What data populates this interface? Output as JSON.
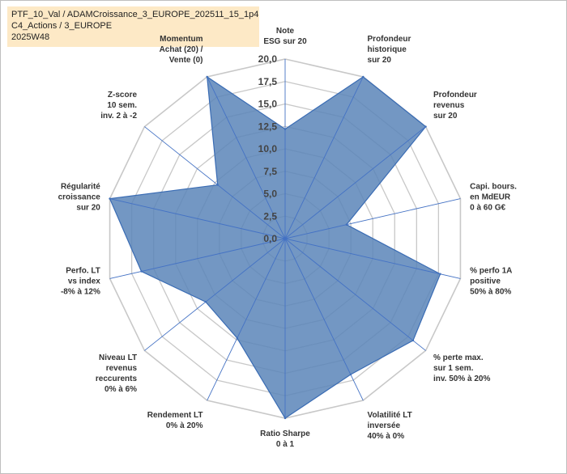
{
  "header": {
    "line1": "PTF_10_Val / ADAMCroissance_3_EUROPE_202511_15_1p4",
    "line2": "C4_Actions / 3_EUROPE",
    "line3": "2025W48"
  },
  "chart_data": {
    "type": "radar",
    "rlim": [
      0,
      20
    ],
    "ticks": [
      "0,0",
      "2,5",
      "5,0",
      "7,5",
      "10,0",
      "12,5",
      "15,0",
      "17,5",
      "20,0"
    ],
    "categories": [
      [
        "Note",
        "ESG sur 20"
      ],
      [
        "Profondeur",
        "historique",
        "sur 20"
      ],
      [
        "Profondeur",
        "revenus",
        "sur 20"
      ],
      [
        "Capi. bours.",
        "en MdEUR",
        "0 à 60 G€"
      ],
      [
        "% perfo 1A",
        "positive",
        "50% à 80%"
      ],
      [
        "% perte max.",
        "sur 1 sem.",
        "inv. 50% à 20%"
      ],
      [
        "Volatilité LT",
        "inversée",
        "40% à 0%"
      ],
      [
        "Ratio Sharpe",
        "0 à 1"
      ],
      [
        "Rendement LT",
        "0% à 20%"
      ],
      [
        "Niveau LT",
        "revenus",
        "reccurents",
        "0% à 6%"
      ],
      [
        "Perfo. LT",
        "vs index",
        "-8% à 12%"
      ],
      [
        "Régularité",
        "croissance",
        "sur 20"
      ],
      [
        "Z-score",
        "10 sem.",
        "inv. 2 à -2"
      ],
      [
        "Momentum",
        "Achat (20) /",
        "Vente (0)"
      ]
    ],
    "values": [
      12.2,
      20,
      20,
      7.0,
      17.7,
      18.2,
      16.8,
      20,
      12.3,
      11.3,
      16.4,
      20,
      9.6,
      20
    ],
    "grid": true,
    "colors": {
      "fill": "#5b85b8",
      "stroke": "#3a6cb4",
      "grid": "#c8c8c8",
      "axis": "#4472c4"
    }
  }
}
